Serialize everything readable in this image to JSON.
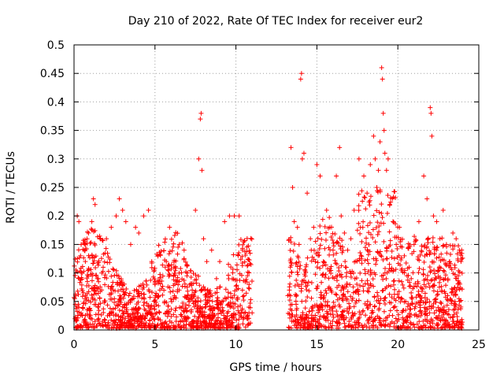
{
  "chart_data": {
    "type": "scatter",
    "title": "Day 210 of 2022, Rate Of TEC Index for receiver eur2",
    "xlabel": "GPS time / hours",
    "ylabel": "ROTI / TECUs",
    "xlim": [
      0,
      25
    ],
    "ylim": [
      0,
      0.5
    ],
    "x_ticks": [
      "0",
      "5",
      "10",
      "15",
      "20",
      "25"
    ],
    "y_ticks": [
      "0",
      "0.05",
      "0.1",
      "0.15",
      "0.2",
      "0.25",
      "0.3",
      "0.35",
      "0.4",
      "0.45",
      "0.5"
    ],
    "x_tick_values": [
      0,
      5,
      10,
      15,
      20,
      25
    ],
    "y_tick_values": [
      0,
      0.05,
      0.1,
      0.15,
      0.2,
      0.25,
      0.3,
      0.35,
      0.4,
      0.45,
      0.5
    ],
    "grid": true,
    "marker": "+",
    "series_color": "#ff0000",
    "data_gaps_hours": [
      [
        11.0,
        13.2
      ]
    ],
    "series": [
      {
        "x": [
          0.1,
          0.2,
          0.3,
          0.4,
          0.5,
          0.7,
          0.9,
          1.1,
          1.2,
          1.3,
          1.5,
          1.8,
          2.0,
          2.3,
          2.6,
          2.8,
          3.0,
          3.2,
          3.5,
          3.8,
          4.0,
          4.3,
          4.6,
          4.8,
          5.0,
          5.3,
          5.6,
          5.9,
          6.2,
          6.5,
          6.8,
          7.0,
          7.3,
          7.5,
          7.7,
          7.8,
          7.85,
          7.9,
          8.0,
          8.2,
          8.5,
          8.8,
          9.0,
          9.3,
          9.6,
          9.9,
          10.2,
          10.5,
          10.8,
          11.0,
          13.3,
          13.4,
          13.5,
          13.6,
          13.8,
          13.9,
          14.0,
          14.05,
          14.1,
          14.2,
          14.4,
          14.6,
          14.8,
          15.0,
          15.2,
          15.4,
          15.6,
          15.8,
          16.0,
          16.2,
          16.4,
          16.5,
          16.7,
          16.9,
          17.1,
          17.3,
          17.6,
          17.9,
          18.1,
          18.3,
          18.5,
          18.6,
          18.7,
          18.8,
          18.9,
          19.0,
          19.05,
          19.1,
          19.15,
          19.2,
          19.3,
          19.4,
          19.5,
          19.7,
          19.9,
          20.1,
          20.4,
          20.7,
          21.0,
          21.3,
          21.6,
          21.8,
          22.0,
          22.05,
          22.1,
          22.2,
          22.4,
          22.6,
          22.8,
          23.0,
          23.2,
          23.4,
          23.6,
          23.8,
          23.9
        ],
        "y": [
          0.06,
          0.2,
          0.19,
          0.13,
          0.1,
          0.12,
          0.17,
          0.19,
          0.23,
          0.22,
          0.09,
          0.11,
          0.16,
          0.18,
          0.2,
          0.23,
          0.21,
          0.19,
          0.15,
          0.18,
          0.17,
          0.2,
          0.21,
          0.12,
          0.08,
          0.07,
          0.05,
          0.18,
          0.06,
          0.15,
          0.14,
          0.1,
          0.07,
          0.21,
          0.3,
          0.37,
          0.38,
          0.28,
          0.16,
          0.12,
          0.14,
          0.09,
          0.12,
          0.19,
          0.2,
          0.2,
          0.2,
          0.06,
          0.04,
          0.03,
          0.07,
          0.32,
          0.25,
          0.19,
          0.18,
          0.15,
          0.44,
          0.45,
          0.3,
          0.31,
          0.24,
          0.16,
          0.18,
          0.29,
          0.27,
          0.12,
          0.21,
          0.18,
          0.14,
          0.27,
          0.32,
          0.2,
          0.17,
          0.14,
          0.16,
          0.21,
          0.3,
          0.27,
          0.24,
          0.29,
          0.34,
          0.3,
          0.25,
          0.28,
          0.33,
          0.46,
          0.44,
          0.38,
          0.35,
          0.31,
          0.28,
          0.3,
          0.22,
          0.19,
          0.15,
          0.18,
          0.13,
          0.11,
          0.15,
          0.19,
          0.27,
          0.23,
          0.39,
          0.38,
          0.34,
          0.2,
          0.19,
          0.16,
          0.21,
          0.15,
          0.12,
          0.17,
          0.16,
          0.14,
          0.12
        ]
      }
    ]
  }
}
